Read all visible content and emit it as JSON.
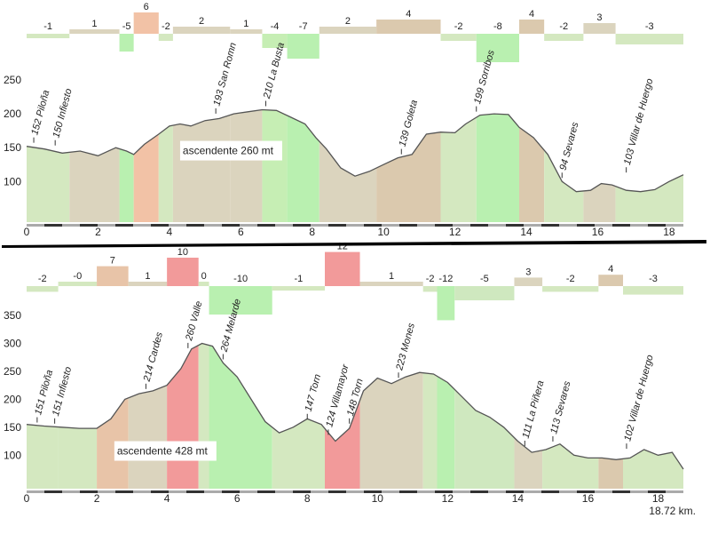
{
  "chart_data": [
    {
      "type": "area",
      "title": "",
      "xlabel": "",
      "ylabel": "",
      "xlim": [
        0,
        18.4
      ],
      "ylim": [
        40,
        250
      ],
      "x_ticks": [
        "0",
        "2",
        "4",
        "6",
        "8",
        "10",
        "12",
        "14",
        "16",
        "18"
      ],
      "x_tick_values": [
        0,
        2,
        4,
        6,
        8,
        10,
        12,
        14,
        16,
        18
      ],
      "y_ticks": [
        "100",
        "150",
        "200",
        "250"
      ],
      "y_tick_values": [
        100,
        150,
        200,
        250
      ],
      "x": [
        0,
        0.5,
        1,
        1.5,
        2,
        2.5,
        2.8,
        3.0,
        3.3,
        3.7,
        4.0,
        4.3,
        4.6,
        5.0,
        5.4,
        5.8,
        6.2,
        6.6,
        7.0,
        7.4,
        7.8,
        8.1,
        8.4,
        8.8,
        9.2,
        9.6,
        10.0,
        10.4,
        10.8,
        11.2,
        11.6,
        12.0,
        12.3,
        12.7,
        13.1,
        13.5,
        13.8,
        14.2,
        14.6,
        15.0,
        15.4,
        15.8,
        16.1,
        16.4,
        16.8,
        17.2,
        17.6,
        18.0,
        18.4
      ],
      "values": [
        152,
        148,
        142,
        145,
        138,
        150,
        145,
        140,
        155,
        170,
        182,
        185,
        182,
        190,
        193,
        200,
        203,
        206,
        205,
        195,
        185,
        165,
        148,
        120,
        108,
        115,
        125,
        135,
        140,
        170,
        173,
        172,
        185,
        198,
        200,
        199,
        180,
        165,
        140,
        100,
        85,
        87,
        97,
        95,
        87,
        85,
        88,
        100,
        110
      ],
      "bands": [
        {
          "from": 0,
          "to": 1.2,
          "value": "-1",
          "color": "#d4e8c0"
        },
        {
          "from": 1.2,
          "to": 2.6,
          "value": "1",
          "color": "#dbd4be"
        },
        {
          "from": 2.6,
          "to": 3.0,
          "value": "-5",
          "color": "#b9f0b0"
        },
        {
          "from": 3.0,
          "to": 3.7,
          "value": "6",
          "color": "#f2c2a6"
        },
        {
          "from": 3.7,
          "to": 4.1,
          "value": "-2",
          "color": "#d4e8c0"
        },
        {
          "from": 4.1,
          "to": 5.7,
          "value": "2",
          "color": "#dbd4be"
        },
        {
          "from": 5.7,
          "to": 6.6,
          "value": "1",
          "color": "#dbd4be"
        },
        {
          "from": 6.6,
          "to": 7.3,
          "value": "-4",
          "color": "#c6eeb4"
        },
        {
          "from": 7.3,
          "to": 8.2,
          "value": "-7",
          "color": "#b9f0b0"
        },
        {
          "from": 8.2,
          "to": 9.8,
          "value": "2",
          "color": "#dbd4be"
        },
        {
          "from": 9.8,
          "to": 11.6,
          "value": "4",
          "color": "#dbc9ae"
        },
        {
          "from": 11.6,
          "to": 12.6,
          "value": "-2",
          "color": "#d4e8c0"
        },
        {
          "from": 12.6,
          "to": 13.8,
          "value": "-8",
          "color": "#b9f0b0"
        },
        {
          "from": 13.8,
          "to": 14.5,
          "value": "4",
          "color": "#dbc9ae"
        },
        {
          "from": 14.5,
          "to": 15.6,
          "value": "-2",
          "color": "#d4e8c0"
        },
        {
          "from": 15.6,
          "to": 16.5,
          "value": "3",
          "color": "#dbd4be"
        },
        {
          "from": 16.5,
          "to": 18.4,
          "value": "-3",
          "color": "#d4e8c0"
        }
      ],
      "waypoints": [
        {
          "x": 0.2,
          "y": 152,
          "label": "152 Piloña"
        },
        {
          "x": 0.8,
          "y": 148,
          "label": "150 Infiesto"
        },
        {
          "x": 5.3,
          "y": 195,
          "label": "193 San Romn"
        },
        {
          "x": 6.7,
          "y": 206,
          "label": "210 La Busta"
        },
        {
          "x": 10.5,
          "y": 135,
          "label": "139 Goleta"
        },
        {
          "x": 12.6,
          "y": 198,
          "label": "199 Sorribos"
        },
        {
          "x": 15.0,
          "y": 100,
          "label": "94 Sevares"
        },
        {
          "x": 16.8,
          "y": 108,
          "label": "103 Villar de Huergo"
        }
      ],
      "annotation": "ascendente 260 mt"
    },
    {
      "type": "area",
      "title": "",
      "xlabel": "",
      "ylabel": "",
      "xlim": [
        0,
        18.72
      ],
      "ylim": [
        40,
        350
      ],
      "x_ticks": [
        "0",
        "2",
        "4",
        "6",
        "8",
        "10",
        "12",
        "14",
        "16",
        "18"
      ],
      "x_tick_values": [
        0,
        2,
        4,
        6,
        8,
        10,
        12,
        14,
        16,
        18
      ],
      "y_ticks": [
        "100",
        "150",
        "200",
        "250",
        "300",
        "350"
      ],
      "y_tick_values": [
        100,
        150,
        200,
        250,
        300,
        350
      ],
      "x": [
        0,
        0.5,
        1,
        1.5,
        2,
        2.4,
        2.8,
        3.2,
        3.6,
        4.0,
        4.4,
        4.7,
        5.0,
        5.3,
        5.6,
        6.0,
        6.4,
        6.8,
        7.2,
        7.6,
        8.0,
        8.4,
        8.8,
        9.2,
        9.6,
        10.0,
        10.4,
        10.8,
        11.2,
        11.6,
        12.0,
        12.4,
        12.8,
        13.2,
        13.6,
        14.0,
        14.4,
        14.8,
        15.2,
        15.6,
        16.0,
        16.4,
        16.8,
        17.2,
        17.6,
        18.0,
        18.4,
        18.72
      ],
      "values": [
        155,
        152,
        150,
        148,
        148,
        165,
        200,
        210,
        215,
        225,
        255,
        290,
        300,
        295,
        265,
        240,
        200,
        160,
        140,
        150,
        165,
        155,
        125,
        148,
        215,
        238,
        228,
        240,
        248,
        245,
        230,
        205,
        180,
        168,
        150,
        125,
        105,
        110,
        120,
        100,
        95,
        95,
        92,
        95,
        110,
        100,
        105,
        75
      ],
      "bands": [
        {
          "from": 0,
          "to": 0.9,
          "value": "-2",
          "color": "#d4e8c0"
        },
        {
          "from": 0.9,
          "to": 2.0,
          "value": "-0",
          "color": "#d4e8c0"
        },
        {
          "from": 2.0,
          "to": 2.9,
          "value": "7",
          "color": "#e8c4a8"
        },
        {
          "from": 2.9,
          "to": 4.0,
          "value": "1",
          "color": "#dbd4be"
        },
        {
          "from": 4.0,
          "to": 4.9,
          "value": "10",
          "color": "#f29a9a"
        },
        {
          "from": 4.9,
          "to": 5.2,
          "value": "0",
          "color": "#d4e8c0"
        },
        {
          "from": 5.2,
          "to": 7.0,
          "value": "-10",
          "color": "#b9f0b0"
        },
        {
          "from": 7.0,
          "to": 8.5,
          "value": "-1",
          "color": "#d4e8c0"
        },
        {
          "from": 8.5,
          "to": 9.5,
          "value": "12",
          "color": "#f29a9a"
        },
        {
          "from": 9.5,
          "to": 11.3,
          "value": "1",
          "color": "#dbd4be"
        },
        {
          "from": 11.3,
          "to": 11.7,
          "value": "-2",
          "color": "#d4e8c0"
        },
        {
          "from": 11.7,
          "to": 12.2,
          "value": "-12",
          "color": "#b9f0b0"
        },
        {
          "from": 12.2,
          "to": 13.9,
          "value": "-5",
          "color": "#cfe8bf"
        },
        {
          "from": 13.9,
          "to": 14.7,
          "value": "3",
          "color": "#dbd4be"
        },
        {
          "from": 14.7,
          "to": 16.3,
          "value": "-2",
          "color": "#d4e8c0"
        },
        {
          "from": 16.3,
          "to": 17.0,
          "value": "4",
          "color": "#dbc9ae"
        },
        {
          "from": 17.0,
          "to": 18.72,
          "value": "-3",
          "color": "#d4e8c0"
        }
      ],
      "waypoints": [
        {
          "x": 0.3,
          "y": 152,
          "label": "151 Piloña"
        },
        {
          "x": 0.8,
          "y": 150,
          "label": "151 Infiesto"
        },
        {
          "x": 3.4,
          "y": 212,
          "label": "214 Cardes"
        },
        {
          "x": 4.6,
          "y": 285,
          "label": "260 Valle"
        },
        {
          "x": 5.6,
          "y": 265,
          "label": "264 Melarde"
        },
        {
          "x": 8.0,
          "y": 158,
          "label": "147 Torn"
        },
        {
          "x": 8.6,
          "y": 130,
          "label": "124 Villamayor"
        },
        {
          "x": 9.2,
          "y": 150,
          "label": "148 Torn"
        },
        {
          "x": 10.6,
          "y": 232,
          "label": "223 Mones"
        },
        {
          "x": 14.2,
          "y": 110,
          "label": "111 La Piñera"
        },
        {
          "x": 15.0,
          "y": 118,
          "label": "113 Sevares"
        },
        {
          "x": 17.1,
          "y": 105,
          "label": "102 Villar de Huergo"
        }
      ],
      "annotation": "ascendente 428 mt",
      "total_distance": "18.72 km."
    }
  ]
}
